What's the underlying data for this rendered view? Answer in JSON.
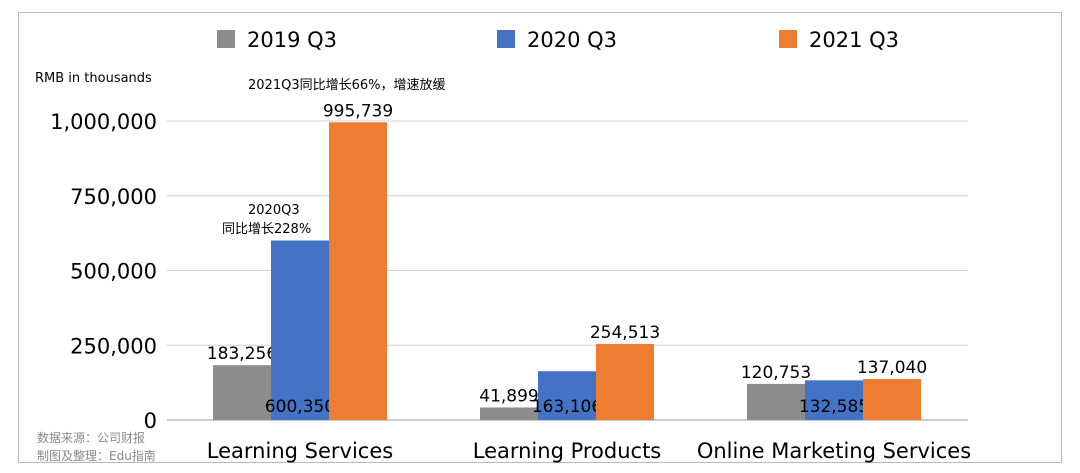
{
  "chart_data": {
    "type": "bar",
    "title": "",
    "ylabel": "RMB in thousands",
    "xlabel": "",
    "ylim": [
      0,
      1000000
    ],
    "yticks": [
      0,
      250000,
      500000,
      750000,
      1000000
    ],
    "ytick_labels": [
      "0",
      "250,000",
      "500,000",
      "750,000",
      "1,000,000"
    ],
    "grid": true,
    "legend_position": "top",
    "categories": [
      "Learning Services",
      "Learning Products",
      "Online Marketing Services"
    ],
    "series": [
      {
        "name": "2019 Q3",
        "color": "#8c8c8c",
        "values": [
          183256,
          41899,
          120753
        ],
        "labels": [
          "183,256",
          "41,899",
          "120,753"
        ]
      },
      {
        "name": "2020 Q3",
        "color": "#4472c4",
        "values": [
          600350,
          163106,
          132585
        ],
        "labels": [
          "600,350",
          "163,106",
          "132,585"
        ]
      },
      {
        "name": "2021 Q3",
        "color": "#ed7d31",
        "values": [
          995739,
          254513,
          137040
        ],
        "labels": [
          "995,739",
          "254,513",
          "137,040"
        ]
      }
    ],
    "annotations": [
      {
        "text": "2021Q3同比增长66%，增速放缓"
      },
      {
        "text": "2020Q3"
      },
      {
        "text": "同比增长228%"
      }
    ]
  },
  "source_lines": [
    "数据来源：公司财报",
    "制图及整理：Edu指南"
  ]
}
